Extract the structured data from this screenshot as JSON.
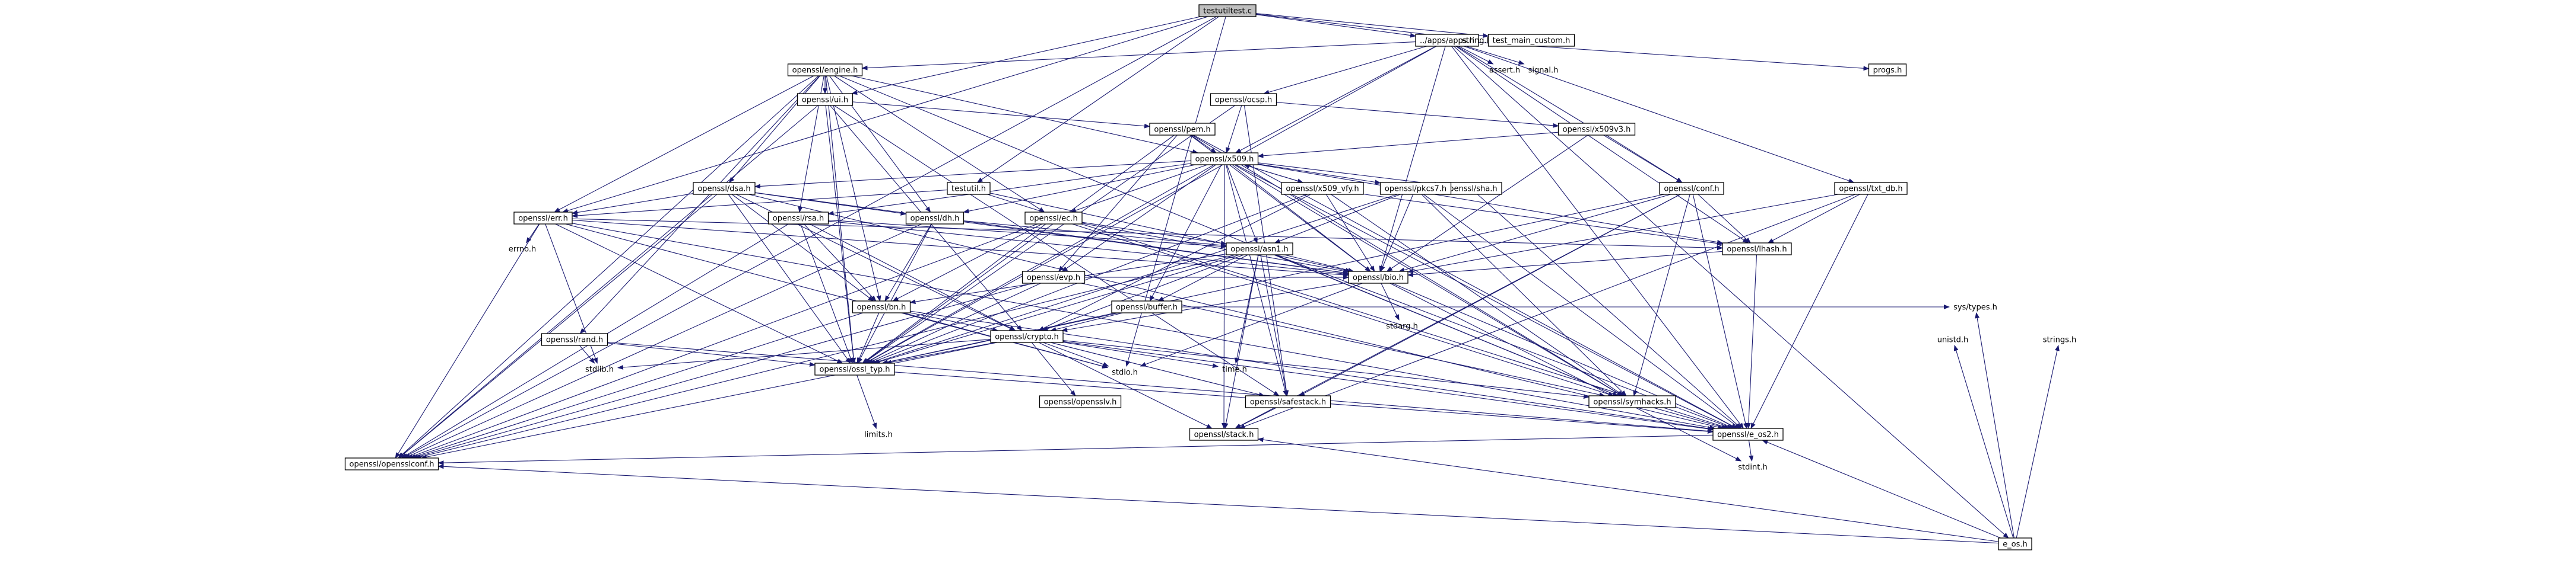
{
  "colors": {
    "edge": "#191970",
    "node_border": "#000000",
    "red_border": "#ff0000",
    "root_fill": "#bfbfbf",
    "node_fill": "#ffffff"
  },
  "nodes": [
    {
      "id": "root",
      "label": "testutiltest.c",
      "style": "root"
    },
    {
      "id": "apps",
      "label": "../apps/apps.h",
      "style": "normal"
    },
    {
      "id": "stringh",
      "label": "string.h",
      "style": "plain"
    },
    {
      "id": "testmain",
      "label": "test_main_custom.h",
      "style": "normal"
    },
    {
      "id": "engine",
      "label": "openssl/engine.h",
      "style": "normal"
    },
    {
      "id": "asserth",
      "label": "assert.h",
      "style": "plain"
    },
    {
      "id": "signalh",
      "label": "signal.h",
      "style": "plain"
    },
    {
      "id": "progsh",
      "label": "progs.h",
      "style": "normal"
    },
    {
      "id": "eos",
      "label": "e_os.h",
      "style": "normal"
    },
    {
      "id": "ocsp",
      "label": "openssl/ocsp.h",
      "style": "normal"
    },
    {
      "id": "ui",
      "label": "openssl/ui.h",
      "style": "normal"
    },
    {
      "id": "x509v3",
      "label": "openssl/x509v3.h",
      "style": "normal"
    },
    {
      "id": "pem",
      "label": "openssl/pem.h",
      "style": "red"
    },
    {
      "id": "x509",
      "label": "openssl/x509.h",
      "style": "normal"
    },
    {
      "id": "dsa",
      "label": "openssl/dsa.h",
      "style": "normal"
    },
    {
      "id": "testutil",
      "label": "testutil.h",
      "style": "normal"
    },
    {
      "id": "sha",
      "label": "openssl/sha.h",
      "style": "red"
    },
    {
      "id": "x509vfy",
      "label": "openssl/x509_vfy.h",
      "style": "normal"
    },
    {
      "id": "pkcs7",
      "label": "openssl/pkcs7.h",
      "style": "normal"
    },
    {
      "id": "conf",
      "label": "openssl/conf.h",
      "style": "normal"
    },
    {
      "id": "txtdb",
      "label": "openssl/txt_db.h",
      "style": "normal"
    },
    {
      "id": "err",
      "label": "openssl/err.h",
      "style": "normal"
    },
    {
      "id": "rsa",
      "label": "openssl/rsa.h",
      "style": "normal"
    },
    {
      "id": "dh",
      "label": "openssl/dh.h",
      "style": "normal"
    },
    {
      "id": "ec",
      "label": "openssl/ec.h",
      "style": "normal"
    },
    {
      "id": "errnoh",
      "label": "errno.h",
      "style": "plain"
    },
    {
      "id": "asn1",
      "label": "openssl/asn1.h",
      "style": "normal"
    },
    {
      "id": "lhash",
      "label": "openssl/lhash.h",
      "style": "normal"
    },
    {
      "id": "evp",
      "label": "openssl/evp.h",
      "style": "red"
    },
    {
      "id": "bio",
      "label": "openssl/bio.h",
      "style": "normal"
    },
    {
      "id": "buffer",
      "label": "openssl/buffer.h",
      "style": "red"
    },
    {
      "id": "bn",
      "label": "openssl/bn.h",
      "style": "normal"
    },
    {
      "id": "randh",
      "label": "openssl/rand.h",
      "style": "normal"
    },
    {
      "id": "crypto",
      "label": "openssl/crypto.h",
      "style": "normal"
    },
    {
      "id": "systypes",
      "label": "sys/types.h",
      "style": "plain"
    },
    {
      "id": "unistdh",
      "label": "unistd.h",
      "style": "plain"
    },
    {
      "id": "stringsh",
      "label": "strings.h",
      "style": "plain"
    },
    {
      "id": "stdargh",
      "label": "stdarg.h",
      "style": "plain"
    },
    {
      "id": "stdlibh",
      "label": "stdlib.h",
      "style": "plain"
    },
    {
      "id": "ossltyp",
      "label": "openssl/ossl_typ.h",
      "style": "normal"
    },
    {
      "id": "stdioh",
      "label": "stdio.h",
      "style": "plain"
    },
    {
      "id": "timeh",
      "label": "time.h",
      "style": "plain"
    },
    {
      "id": "opensslv",
      "label": "openssl/opensslv.h",
      "style": "normal"
    },
    {
      "id": "safestack",
      "label": "openssl/safestack.h",
      "style": "normal"
    },
    {
      "id": "symhacks",
      "label": "openssl/symhacks.h",
      "style": "normal"
    },
    {
      "id": "limitsh",
      "label": "limits.h",
      "style": "plain"
    },
    {
      "id": "stack",
      "label": "openssl/stack.h",
      "style": "normal"
    },
    {
      "id": "eos2",
      "label": "openssl/e_os2.h",
      "style": "normal"
    },
    {
      "id": "opensslconf",
      "label": "openssl/opensslconf.h",
      "style": "normal"
    },
    {
      "id": "stdinth",
      "label": "stdint.h",
      "style": "plain"
    }
  ],
  "edges": [
    [
      "root",
      "apps"
    ],
    [
      "root",
      "stringh"
    ],
    [
      "root",
      "testmain"
    ],
    [
      "root",
      "ui"
    ],
    [
      "root",
      "err"
    ],
    [
      "root",
      "testutil"
    ],
    [
      "root",
      "opensslconf"
    ],
    [
      "root",
      "stdioh"
    ],
    [
      "apps",
      "engine"
    ],
    [
      "apps",
      "asserth"
    ],
    [
      "apps",
      "signalh"
    ],
    [
      "apps",
      "progsh"
    ],
    [
      "apps",
      "eos"
    ],
    [
      "apps",
      "ocsp"
    ],
    [
      "apps",
      "x509"
    ],
    [
      "apps",
      "conf"
    ],
    [
      "apps",
      "txtdb"
    ],
    [
      "apps",
      "lhash"
    ],
    [
      "apps",
      "bio"
    ],
    [
      "apps",
      "eos2"
    ],
    [
      "apps",
      "ossltyp"
    ],
    [
      "engine",
      "ui"
    ],
    [
      "engine",
      "x509"
    ],
    [
      "engine",
      "dsa"
    ],
    [
      "engine",
      "rsa"
    ],
    [
      "engine",
      "dh"
    ],
    [
      "engine",
      "ec"
    ],
    [
      "engine",
      "err"
    ],
    [
      "engine",
      "bn"
    ],
    [
      "engine",
      "randh"
    ],
    [
      "engine",
      "ossltyp"
    ],
    [
      "engine",
      "symhacks"
    ],
    [
      "engine",
      "opensslconf"
    ],
    [
      "ocsp",
      "x509v3"
    ],
    [
      "ocsp",
      "x509"
    ],
    [
      "ocsp",
      "safestack"
    ],
    [
      "ocsp",
      "ossltyp"
    ],
    [
      "ui",
      "pem"
    ],
    [
      "ui",
      "crypto"
    ],
    [
      "ui",
      "safestack"
    ],
    [
      "ui",
      "ossltyp"
    ],
    [
      "ui",
      "opensslconf"
    ],
    [
      "x509v3",
      "x509"
    ],
    [
      "x509v3",
      "conf"
    ],
    [
      "x509v3",
      "bio"
    ],
    [
      "pem",
      "x509"
    ],
    [
      "pem",
      "evp"
    ],
    [
      "pem",
      "bio"
    ],
    [
      "pem",
      "ossltyp"
    ],
    [
      "pem",
      "symhacks"
    ],
    [
      "pem",
      "eos2"
    ],
    [
      "x509",
      "dsa"
    ],
    [
      "x509",
      "sha"
    ],
    [
      "x509",
      "x509vfy"
    ],
    [
      "x509",
      "pkcs7"
    ],
    [
      "x509",
      "rsa"
    ],
    [
      "x509",
      "dh"
    ],
    [
      "x509",
      "ec"
    ],
    [
      "x509",
      "asn1"
    ],
    [
      "x509",
      "lhash"
    ],
    [
      "x509",
      "evp"
    ],
    [
      "x509",
      "bio"
    ],
    [
      "x509",
      "buffer"
    ],
    [
      "x509",
      "safestack"
    ],
    [
      "x509",
      "stack"
    ],
    [
      "x509",
      "symhacks"
    ],
    [
      "x509",
      "eos2"
    ],
    [
      "x509",
      "ossltyp"
    ],
    [
      "dsa",
      "err"
    ],
    [
      "dsa",
      "bn"
    ],
    [
      "dsa",
      "crypto"
    ],
    [
      "dsa",
      "ossltyp"
    ],
    [
      "dsa",
      "bio"
    ],
    [
      "dsa",
      "opensslconf"
    ],
    [
      "dsa",
      "eos2"
    ],
    [
      "dsa",
      "dh"
    ],
    [
      "testutil",
      "err"
    ],
    [
      "testutil",
      "bio"
    ],
    [
      "testutil",
      "eos2"
    ],
    [
      "sha",
      "eos2"
    ],
    [
      "x509vfy",
      "x509"
    ],
    [
      "x509vfy",
      "lhash"
    ],
    [
      "x509vfy",
      "bio"
    ],
    [
      "x509vfy",
      "crypto"
    ],
    [
      "x509vfy",
      "symhacks"
    ],
    [
      "x509vfy",
      "ossltyp"
    ],
    [
      "pkcs7",
      "asn1"
    ],
    [
      "pkcs7",
      "bio"
    ],
    [
      "pkcs7",
      "symhacks"
    ],
    [
      "pkcs7",
      "eos2"
    ],
    [
      "pkcs7",
      "ossltyp"
    ],
    [
      "conf",
      "lhash"
    ],
    [
      "conf",
      "bio"
    ],
    [
      "conf",
      "safestack"
    ],
    [
      "conf",
      "stack"
    ],
    [
      "conf",
      "symhacks"
    ],
    [
      "conf",
      "eos2"
    ],
    [
      "conf",
      "ossltyp"
    ],
    [
      "txtdb",
      "lhash"
    ],
    [
      "txtdb",
      "bio"
    ],
    [
      "txtdb",
      "stack"
    ],
    [
      "txtdb",
      "eos2"
    ],
    [
      "err",
      "errnoh"
    ],
    [
      "err",
      "lhash"
    ],
    [
      "err",
      "bio"
    ],
    [
      "err",
      "stdlibh"
    ],
    [
      "err",
      "stdioh"
    ],
    [
      "err",
      "ossltyp"
    ],
    [
      "err",
      "opensslconf"
    ],
    [
      "err",
      "eos2"
    ],
    [
      "rsa",
      "asn1"
    ],
    [
      "rsa",
      "bn"
    ],
    [
      "rsa",
      "crypto"
    ],
    [
      "rsa",
      "ossltyp"
    ],
    [
      "rsa",
      "bio"
    ],
    [
      "rsa",
      "opensslconf"
    ],
    [
      "dh",
      "bn"
    ],
    [
      "dh",
      "asn1"
    ],
    [
      "dh",
      "ossltyp"
    ],
    [
      "dh",
      "bio"
    ],
    [
      "dh",
      "opensslconf"
    ],
    [
      "ec",
      "asn1"
    ],
    [
      "ec",
      "bn"
    ],
    [
      "ec",
      "ossltyp"
    ],
    [
      "ec",
      "bio"
    ],
    [
      "ec",
      "opensslconf"
    ],
    [
      "ec",
      "symhacks"
    ],
    [
      "asn1",
      "bio"
    ],
    [
      "asn1",
      "bn"
    ],
    [
      "asn1",
      "buffer"
    ],
    [
      "asn1",
      "crypto"
    ],
    [
      "asn1",
      "safestack"
    ],
    [
      "asn1",
      "stack"
    ],
    [
      "asn1",
      "symhacks"
    ],
    [
      "asn1",
      "eos2"
    ],
    [
      "asn1",
      "ossltyp"
    ],
    [
      "asn1",
      "timeh"
    ],
    [
      "asn1",
      "opensslconf"
    ],
    [
      "lhash",
      "bio"
    ],
    [
      "lhash",
      "eos2"
    ],
    [
      "evp",
      "bio"
    ],
    [
      "evp",
      "ossltyp"
    ],
    [
      "evp",
      "symhacks"
    ],
    [
      "evp",
      "opensslconf"
    ],
    [
      "bio",
      "crypto"
    ],
    [
      "bio",
      "stdargh"
    ],
    [
      "bio",
      "stdioh"
    ],
    [
      "bio",
      "eos2"
    ],
    [
      "bio",
      "stdinth"
    ],
    [
      "buffer",
      "crypto"
    ],
    [
      "buffer",
      "ossltyp"
    ],
    [
      "buffer",
      "systypes"
    ],
    [
      "bn",
      "crypto"
    ],
    [
      "bn",
      "stdioh"
    ],
    [
      "bn",
      "ossltyp"
    ],
    [
      "bn",
      "opensslconf"
    ],
    [
      "bn",
      "eos2"
    ],
    [
      "randh",
      "ossltyp"
    ],
    [
      "randh",
      "stdlibh"
    ],
    [
      "randh",
      "eos2"
    ],
    [
      "crypto",
      "stdlibh"
    ],
    [
      "crypto",
      "ossltyp"
    ],
    [
      "crypto",
      "stdioh"
    ],
    [
      "crypto",
      "timeh"
    ],
    [
      "crypto",
      "opensslv"
    ],
    [
      "crypto",
      "safestack"
    ],
    [
      "crypto",
      "symhacks"
    ],
    [
      "crypto",
      "stack"
    ],
    [
      "crypto",
      "eos2"
    ],
    [
      "crypto",
      "opensslconf"
    ],
    [
      "eos",
      "unistdh"
    ],
    [
      "eos",
      "stringsh"
    ],
    [
      "eos",
      "systypes"
    ],
    [
      "eos",
      "eos2"
    ],
    [
      "eos",
      "opensslconf"
    ],
    [
      "eos",
      "stack"
    ],
    [
      "ossltyp",
      "limitsh"
    ],
    [
      "ossltyp",
      "eos2"
    ],
    [
      "safestack",
      "stack"
    ],
    [
      "symhacks",
      "eos2"
    ],
    [
      "eos2",
      "opensslconf"
    ],
    [
      "eos2",
      "stdinth"
    ]
  ]
}
